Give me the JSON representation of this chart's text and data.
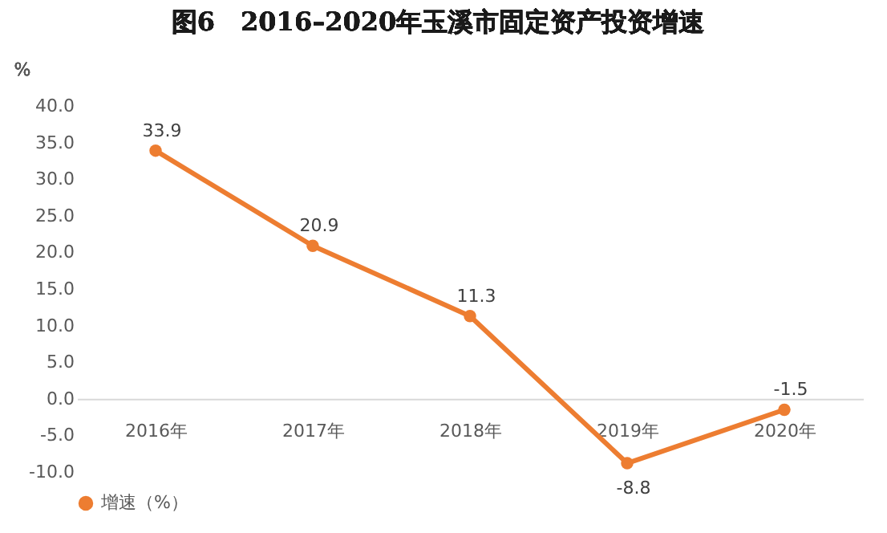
{
  "chart_data": {
    "type": "line",
    "title": "图6　2016–2020年玉溪市固定资产投资增速",
    "ylabel": "%",
    "categories": [
      "2016年",
      "2017年",
      "2018年",
      "2019年",
      "2020年"
    ],
    "series": [
      {
        "name": "增速（%）",
        "color": "#ed7d31",
        "values": [
          33.9,
          20.9,
          11.3,
          -8.8,
          -1.5
        ]
      }
    ],
    "ylim": [
      -10,
      40
    ],
    "yticks": [
      {
        "value": -10,
        "label": "-10.0"
      },
      {
        "value": -5,
        "label": "-5.0"
      },
      {
        "value": 0,
        "label": "0.0"
      },
      {
        "value": 5,
        "label": "5.0"
      },
      {
        "value": 10,
        "label": "10.0"
      },
      {
        "value": 15,
        "label": "15.0"
      },
      {
        "value": 20,
        "label": "20.0"
      },
      {
        "value": 25,
        "label": "25.0"
      },
      {
        "value": 30,
        "label": "30.0"
      },
      {
        "value": 35,
        "label": "35.0"
      },
      {
        "value": 40,
        "label": "40.0"
      }
    ],
    "data_labels": true,
    "marker": "circle",
    "legend": "bottom",
    "grid": false
  }
}
